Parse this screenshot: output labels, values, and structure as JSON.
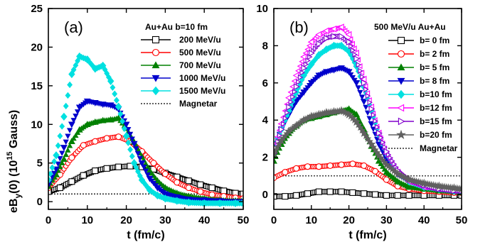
{
  "y_axis_title": {
    "main": "eB",
    "sub": "y",
    "rest": "(0) (10",
    "sup": "15",
    "tail": " Gauss)"
  },
  "chart_data": [
    {
      "type": "scatter",
      "panel_label": "(a)",
      "legend_title": "Au+Au b=10 fm",
      "legend_position": "top-right",
      "xlabel": "t (fm/c)",
      "xlim": [
        0,
        50
      ],
      "ylim": [
        -1,
        25
      ],
      "x_ticks": [
        "0",
        "10",
        "20",
        "30",
        "40",
        "50"
      ],
      "y_ticks": [
        "0",
        "5",
        "10",
        "15",
        "20",
        "25"
      ],
      "x_tick_values": [
        0,
        10,
        20,
        30,
        40,
        50
      ],
      "y_tick_values": [
        0,
        5,
        10,
        15,
        20,
        25
      ],
      "reference_line": {
        "name": "Magnetar",
        "y": 1.0,
        "style": "dotted"
      },
      "series": [
        {
          "name": "200 MeV/u",
          "color": "#000000",
          "marker": "square-open",
          "x": [
            0,
            3,
            6,
            9,
            12,
            15,
            18,
            21,
            24,
            27,
            30,
            33,
            36,
            39,
            42,
            45,
            48,
            50
          ],
          "y": [
            1.3,
            1.8,
            2.6,
            3.4,
            4.0,
            4.3,
            4.5,
            4.6,
            4.5,
            4.2,
            3.7,
            3.2,
            2.7,
            2.2,
            1.8,
            1.4,
            1.1,
            1.0
          ]
        },
        {
          "name": "500 MeV/u",
          "color": "#ff0000",
          "marker": "circle-open",
          "x": [
            0,
            3,
            6,
            9,
            12,
            15,
            18,
            21,
            24,
            27,
            30,
            33,
            36,
            39,
            42,
            45,
            48,
            50
          ],
          "y": [
            1.8,
            3.5,
            5.7,
            7.3,
            7.8,
            8.2,
            8.4,
            7.8,
            6.5,
            5.0,
            3.6,
            2.5,
            1.8,
            1.3,
            0.9,
            0.7,
            0.5,
            0.4
          ]
        },
        {
          "name": "700 MeV/u",
          "color": "#008000",
          "marker": "triangle-up",
          "x": [
            0,
            2,
            4,
            6,
            8,
            10,
            12,
            14,
            16,
            18,
            20,
            22,
            24,
            26,
            28,
            30,
            33,
            36,
            40,
            44,
            48,
            50
          ],
          "y": [
            2.0,
            3.5,
            5.5,
            7.8,
            9.3,
            10.0,
            10.3,
            10.5,
            10.6,
            10.8,
            9.5,
            7.7,
            5.8,
            4.0,
            2.7,
            1.8,
            1.1,
            0.7,
            0.4,
            0.2,
            0.1,
            0.1
          ]
        },
        {
          "name": "1000 MeV/u",
          "color": "#0000cc",
          "marker": "triangle-down",
          "x": [
            0,
            2,
            4,
            6,
            8,
            10,
            12,
            14,
            16,
            18,
            20,
            22,
            24,
            26,
            28,
            30,
            33,
            36,
            40,
            44,
            48,
            50
          ],
          "y": [
            2.2,
            4.2,
            7.0,
            10.0,
            12.2,
            13.0,
            12.8,
            12.6,
            12.5,
            12.0,
            10.0,
            7.5,
            5.0,
            3.0,
            1.8,
            1.0,
            0.6,
            0.3,
            0.2,
            0.1,
            0.0,
            0.0
          ]
        },
        {
          "name": "1500 MeV/u",
          "color": "#00e0e0",
          "marker": "diamond",
          "x": [
            0,
            2,
            4,
            6,
            8,
            10,
            12,
            14,
            16,
            18,
            20,
            22,
            24,
            26,
            28,
            30,
            33,
            36,
            40,
            44,
            48,
            50
          ],
          "y": [
            2.8,
            6.0,
            11.0,
            16.5,
            18.8,
            18.4,
            17.2,
            17.6,
            15.6,
            12.3,
            8.5,
            5.0,
            2.8,
            1.5,
            0.8,
            0.4,
            0.1,
            -0.1,
            -0.2,
            -0.2,
            -0.2,
            -0.2
          ]
        }
      ]
    },
    {
      "type": "scatter",
      "panel_label": "(b)",
      "legend_title": "500 MeV/u Au+Au",
      "legend_position": "top-right",
      "xlabel": "t (fm/c)",
      "xlim": [
        0,
        50
      ],
      "ylim": [
        -0.8,
        10
      ],
      "x_ticks": [
        "0",
        "10",
        "20",
        "30",
        "40",
        "50"
      ],
      "y_ticks": [
        "0",
        "2",
        "4",
        "6",
        "8",
        "10"
      ],
      "x_tick_values": [
        0,
        10,
        20,
        30,
        40,
        50
      ],
      "y_tick_values": [
        0,
        2,
        4,
        6,
        8,
        10
      ],
      "reference_line": {
        "name": "Magnetar",
        "y": 1.0,
        "style": "dotted"
      },
      "series": [
        {
          "name": "b=  0 fm",
          "color": "#000000",
          "marker": "square-open",
          "x": [
            0,
            3,
            6,
            9,
            12,
            15,
            18,
            21,
            24,
            27,
            30,
            33,
            36,
            40,
            44,
            48,
            50
          ],
          "y": [
            -0.1,
            -0.1,
            -0.05,
            0.05,
            0.15,
            0.15,
            0.15,
            0.1,
            0.05,
            0.0,
            -0.05,
            -0.05,
            -0.05,
            -0.05,
            -0.05,
            -0.05,
            -0.05
          ]
        },
        {
          "name": "b=  2 fm",
          "color": "#ff0000",
          "marker": "circle-open",
          "x": [
            0,
            3,
            6,
            9,
            12,
            15,
            18,
            21,
            24,
            27,
            30,
            33,
            36,
            40,
            44,
            48,
            50
          ],
          "y": [
            0.9,
            1.2,
            1.4,
            1.5,
            1.5,
            1.55,
            1.6,
            1.65,
            1.55,
            1.25,
            0.8,
            0.45,
            0.3,
            0.2,
            0.15,
            0.1,
            0.1
          ]
        },
        {
          "name": "b=  5 fm",
          "color": "#008000",
          "marker": "triangle-up",
          "x": [
            0,
            2,
            4,
            6,
            8,
            10,
            12,
            14,
            16,
            18,
            20,
            22,
            24,
            26,
            28,
            30,
            33,
            36,
            40,
            44,
            48,
            50
          ],
          "y": [
            1.8,
            2.7,
            3.3,
            3.7,
            4.0,
            4.1,
            4.2,
            4.3,
            4.4,
            4.5,
            4.6,
            4.3,
            3.5,
            2.6,
            1.8,
            1.2,
            0.7,
            0.4,
            0.3,
            0.2,
            0.15,
            0.1
          ]
        },
        {
          "name": "b=  8 fm",
          "color": "#0000cc",
          "marker": "triangle-down",
          "x": [
            0,
            2,
            4,
            6,
            8,
            10,
            12,
            14,
            16,
            18,
            20,
            22,
            24,
            26,
            28,
            30,
            33,
            36,
            40,
            44,
            48,
            50
          ],
          "y": [
            2.5,
            3.5,
            4.3,
            5.0,
            5.5,
            6.0,
            6.4,
            6.6,
            6.7,
            6.8,
            6.6,
            6.0,
            5.0,
            3.8,
            2.7,
            1.9,
            1.1,
            0.7,
            0.4,
            0.3,
            0.2,
            0.2
          ]
        },
        {
          "name": "b=10 fm",
          "color": "#00e0e0",
          "marker": "diamond",
          "x": [
            0,
            2,
            4,
            6,
            8,
            10,
            12,
            14,
            16,
            18,
            20,
            22,
            24,
            26,
            28,
            30,
            33,
            36,
            40,
            44,
            48,
            50
          ],
          "y": [
            2.5,
            3.5,
            4.5,
            5.5,
            6.4,
            7.0,
            7.5,
            7.8,
            8.0,
            8.0,
            7.7,
            6.9,
            5.8,
            4.5,
            3.2,
            2.2,
            1.2,
            0.7,
            0.4,
            0.3,
            0.2,
            0.2
          ]
        },
        {
          "name": "b=12 fm",
          "color": "#ff00ff",
          "marker": "triangle-left",
          "x": [
            0,
            2,
            4,
            6,
            8,
            10,
            12,
            14,
            16,
            18,
            20,
            22,
            24,
            26,
            28,
            30,
            33,
            36,
            40,
            44,
            48,
            50
          ],
          "y": [
            2.4,
            3.8,
            5.2,
            6.4,
            7.4,
            8.2,
            8.6,
            8.8,
            8.9,
            9.0,
            8.6,
            7.6,
            6.2,
            4.7,
            3.3,
            2.2,
            1.2,
            0.7,
            0.4,
            0.3,
            0.2,
            0.2
          ]
        },
        {
          "name": "b=15 fm",
          "color": "#8000cc",
          "marker": "triangle-right",
          "x": [
            0,
            2,
            4,
            6,
            8,
            10,
            12,
            14,
            16,
            18,
            20,
            22,
            24,
            26,
            28,
            30,
            33,
            36,
            40,
            44,
            48,
            50
          ],
          "y": [
            2.2,
            3.5,
            4.7,
            5.8,
            6.8,
            7.6,
            8.1,
            8.4,
            8.5,
            8.5,
            8.2,
            7.3,
            6.0,
            4.6,
            3.3,
            2.3,
            1.3,
            0.8,
            0.5,
            0.3,
            0.2,
            0.2
          ]
        },
        {
          "name": "b=20 fm",
          "color": "#606060",
          "marker": "star",
          "x": [
            0,
            2,
            4,
            6,
            8,
            10,
            12,
            14,
            16,
            18,
            20,
            22,
            24,
            26,
            28,
            30,
            33,
            36,
            40,
            44,
            48,
            50
          ],
          "y": [
            2.2,
            2.9,
            3.4,
            3.7,
            4.0,
            4.2,
            4.3,
            4.4,
            4.45,
            4.5,
            4.3,
            3.9,
            3.3,
            2.7,
            2.1,
            1.6,
            1.1,
            0.8,
            0.6,
            0.45,
            0.35,
            0.3
          ]
        }
      ]
    }
  ]
}
